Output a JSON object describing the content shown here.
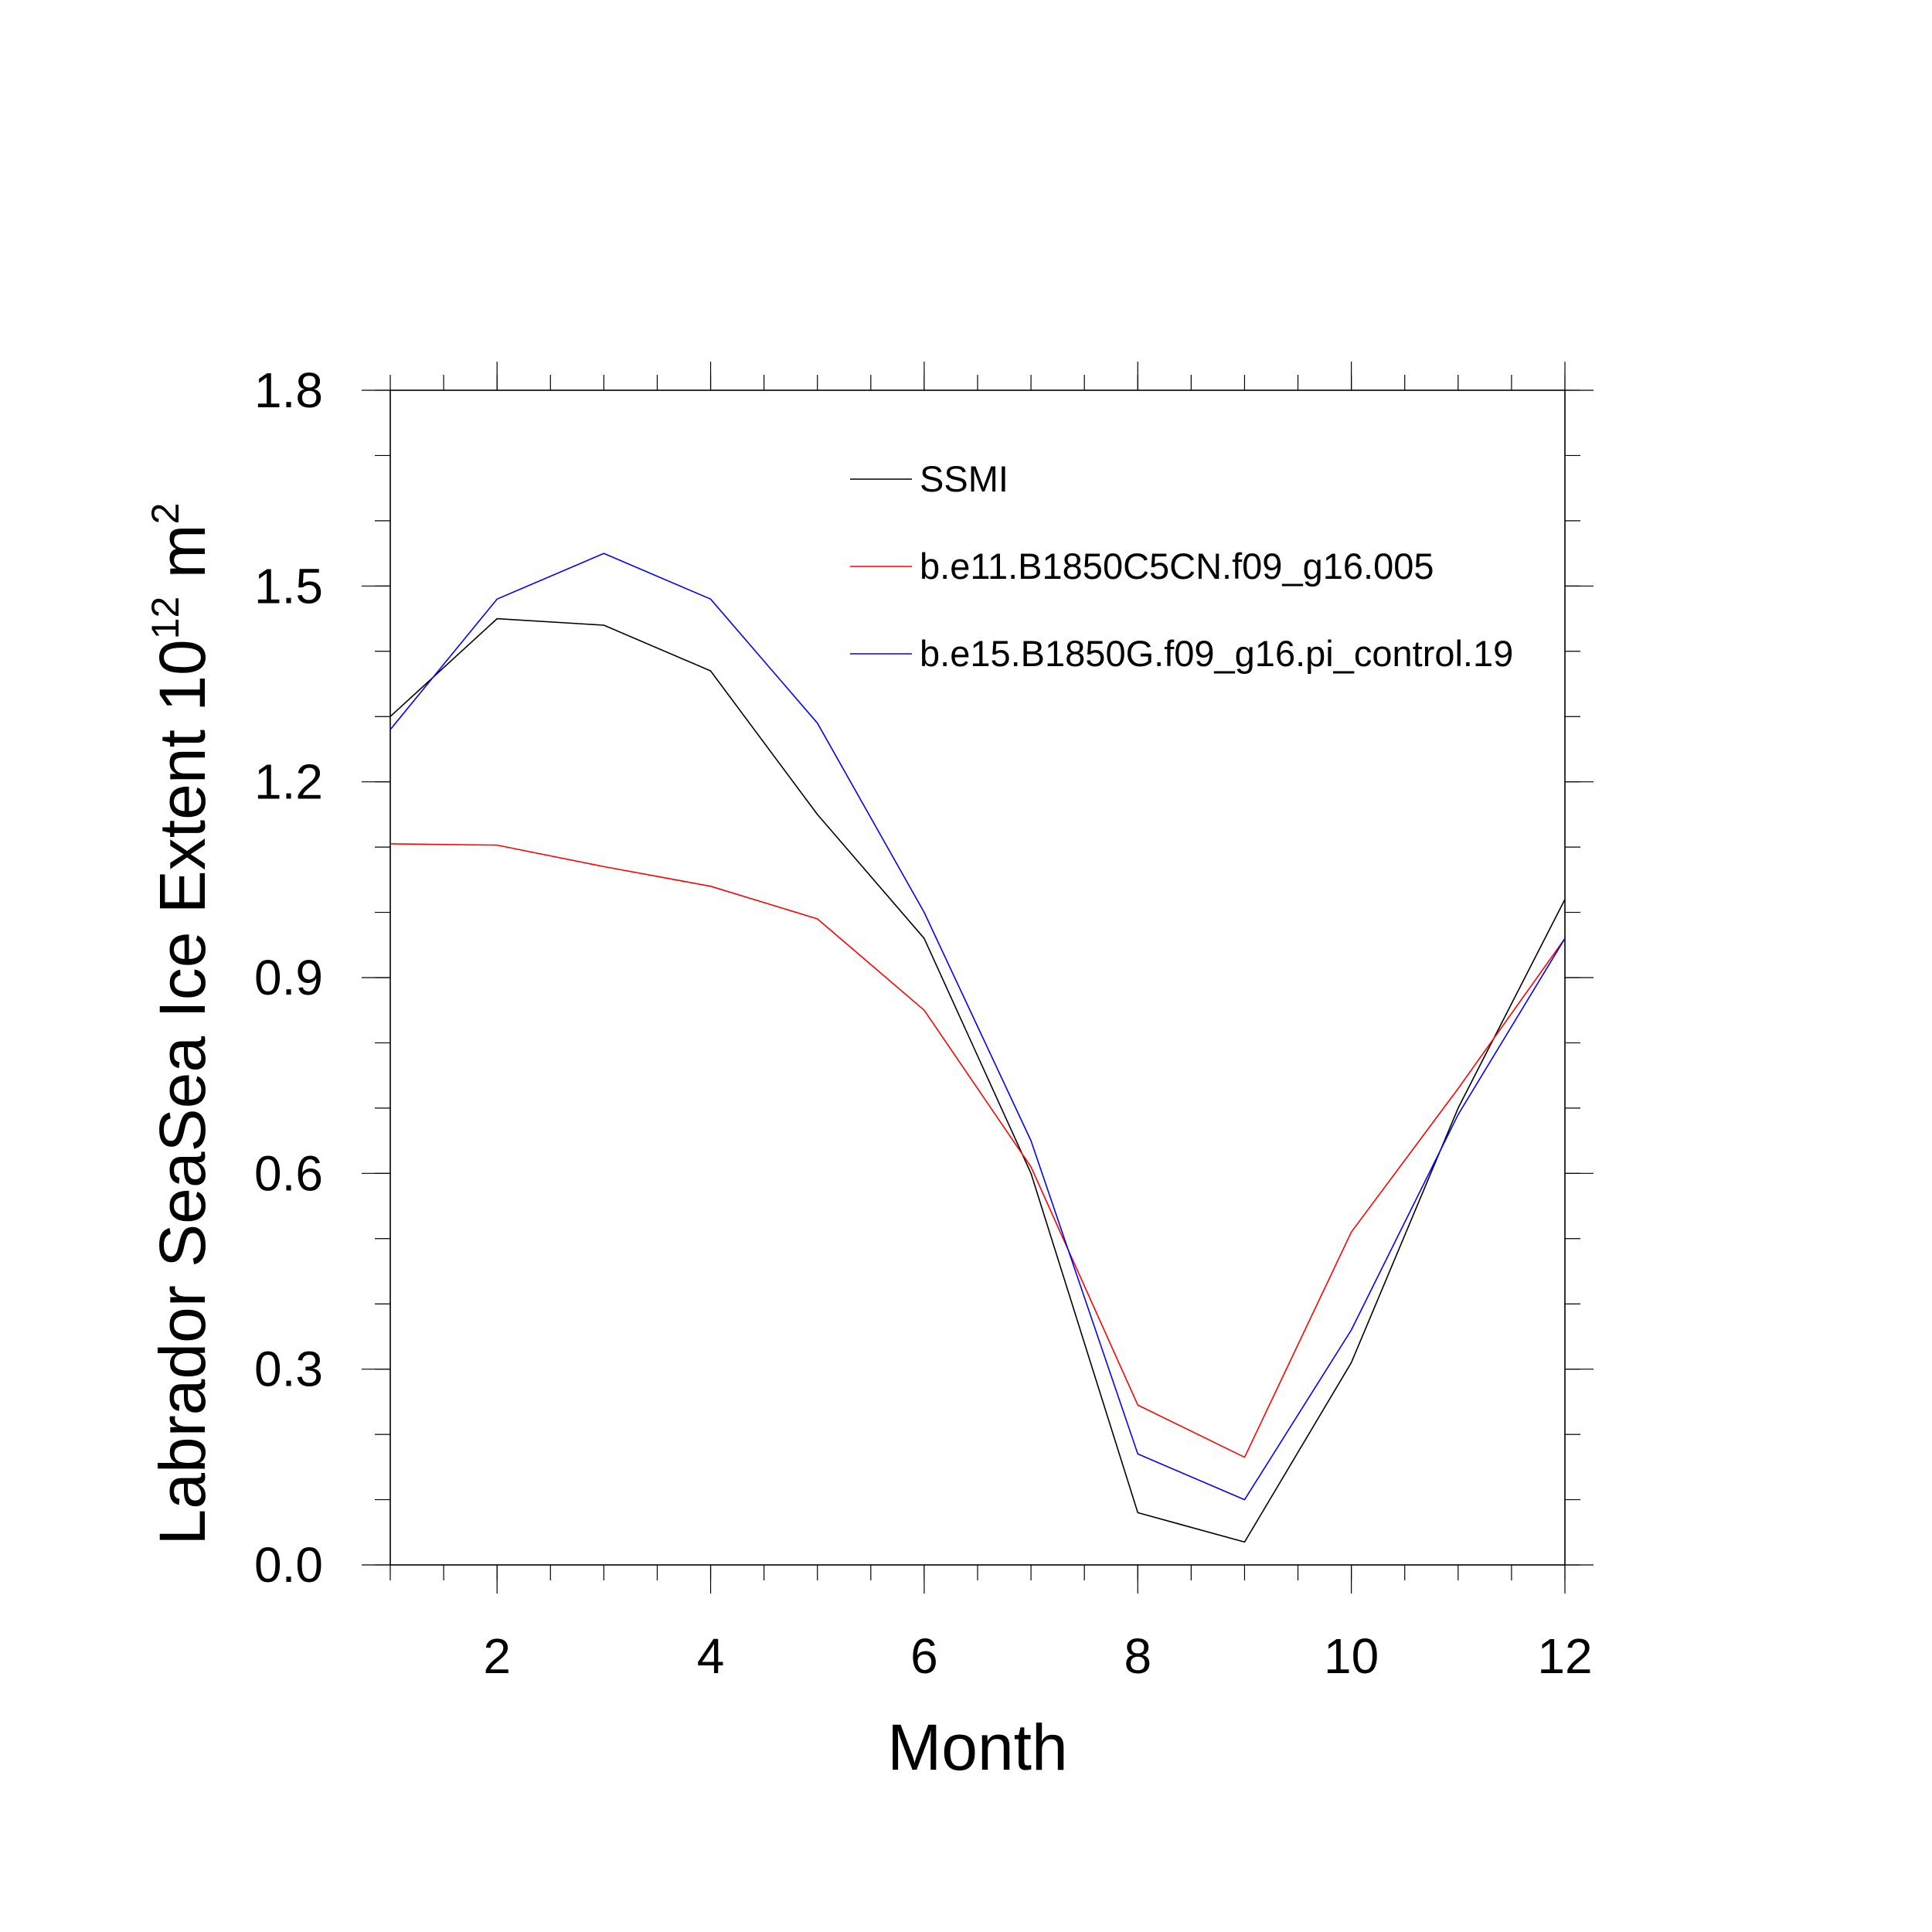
{
  "chart_data": {
    "type": "line",
    "xlabel": "Month",
    "ylabel_main": "Labrador SeaSea Ice Extent 10",
    "ylabel_sup1": "12",
    "ylabel_unit": " m",
    "ylabel_sup2": "2",
    "xlim": [
      1,
      12
    ],
    "ylim": [
      0.0,
      1.8
    ],
    "xticks_major": [
      2,
      4,
      6,
      8,
      10,
      12
    ],
    "xtick_labels": [
      "2",
      "4",
      "6",
      "8",
      "10",
      "12"
    ],
    "yticks_major": [
      0.0,
      0.3,
      0.6,
      0.9,
      1.2,
      1.5,
      1.8
    ],
    "ytick_labels": [
      "0.0",
      "0.3",
      "0.6",
      "0.9",
      "1.2",
      "1.5",
      "1.8"
    ],
    "legend_position": "top-right",
    "x": [
      1,
      2,
      3,
      4,
      5,
      6,
      7,
      8,
      9,
      10,
      11,
      12
    ],
    "series": [
      {
        "name": "SSMI",
        "color": "#000000",
        "values": [
          1.3,
          1.45,
          1.44,
          1.37,
          1.15,
          0.96,
          0.6,
          0.08,
          0.035,
          0.31,
          0.7,
          1.02
        ]
      },
      {
        "name": "b.e11.B1850C5CN.f09_g16.005",
        "color": "#ff0000",
        "values": [
          1.105,
          1.103,
          1.07,
          1.04,
          0.99,
          0.85,
          0.61,
          0.245,
          0.165,
          0.51,
          0.73,
          0.96
        ]
      },
      {
        "name": "b.e15.B1850G.f09_g16.pi_control.19",
        "color": "#0000ff",
        "values": [
          1.28,
          1.48,
          1.55,
          1.48,
          1.29,
          1.0,
          0.65,
          0.17,
          0.1,
          0.36,
          0.69,
          0.96
        ]
      }
    ]
  }
}
